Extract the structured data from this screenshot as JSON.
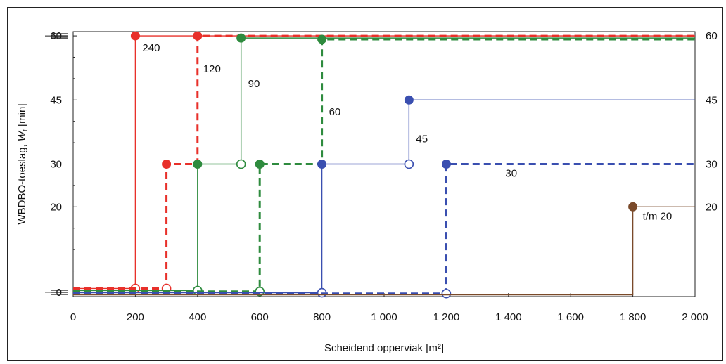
{
  "chart_data": {
    "type": "line",
    "step": true,
    "xlabel": "Scheidend opperviak [m²]",
    "ylabel_parts": [
      "WBDBO-toeslag, ",
      "W",
      "t",
      " [min]"
    ],
    "xlim": [
      0,
      2000
    ],
    "ylim": [
      -1,
      61
    ],
    "x_ticks": [
      "0",
      "200",
      "400",
      "600",
      "800",
      "1 000",
      "1 200",
      "1 400",
      "1 600",
      "1 800",
      "2 000"
    ],
    "x_tick_values": [
      0,
      200,
      400,
      600,
      800,
      1000,
      1200,
      1400,
      1600,
      1800,
      2000
    ],
    "y_ticks_left": [
      "0",
      "20",
      "30",
      "45",
      "60"
    ],
    "y_tick_values": [
      0,
      20,
      30,
      45,
      60
    ],
    "y_labels_right": [
      "20",
      "30",
      "45",
      "60"
    ],
    "grid": false,
    "series": [
      {
        "name": "240",
        "color": "#e8302a",
        "dashed": false,
        "width": 1.4,
        "points": [
          [
            0,
            0.9
          ],
          [
            200,
            0.9
          ],
          [
            200,
            60
          ],
          [
            2000,
            60
          ]
        ],
        "open_markers": [
          [
            200,
            0.9
          ]
        ],
        "filled_markers": [
          [
            200,
            60
          ]
        ],
        "label": "240",
        "label_at": [
          200,
          60
        ]
      },
      {
        "name": "120",
        "color": "#e8302a",
        "dashed": true,
        "width": 3,
        "points": [
          [
            0,
            0.9
          ],
          [
            300,
            0.9
          ],
          [
            300,
            30
          ],
          [
            400,
            30
          ],
          [
            400,
            60
          ],
          [
            2000,
            60
          ]
        ],
        "open_markers": [
          [
            300,
            0.9
          ]
        ],
        "filled_markers": [
          [
            300,
            30
          ],
          [
            400,
            60
          ]
        ],
        "label": "120",
        "label_at": [
          400,
          60
        ]
      },
      {
        "name": "90",
        "color": "#2e8b3e",
        "dashed": false,
        "width": 1.4,
        "points": [
          [
            0,
            0.4
          ],
          [
            400,
            0.4
          ],
          [
            400,
            30
          ],
          [
            540,
            30
          ],
          [
            540,
            59.5
          ],
          [
            2000,
            59.5
          ]
        ],
        "open_markers": [
          [
            400,
            0.4
          ],
          [
            540,
            30
          ]
        ],
        "filled_markers": [
          [
            400,
            30
          ],
          [
            540,
            59.5
          ]
        ],
        "label": "90",
        "label_at": [
          540,
          59.5
        ]
      },
      {
        "name": "60",
        "color": "#2e8b3e",
        "dashed": true,
        "width": 3,
        "points": [
          [
            0,
            0.2
          ],
          [
            600,
            0.2
          ],
          [
            600,
            30
          ],
          [
            800,
            30
          ],
          [
            800,
            59.2
          ],
          [
            2000,
            59.2
          ]
        ],
        "open_markers": [
          [
            600,
            0.2
          ]
        ],
        "filled_markers": [
          [
            600,
            30
          ],
          [
            800,
            59.2
          ]
        ],
        "label": "60",
        "label_at": [
          800,
          59.2
        ]
      },
      {
        "name": "45",
        "color": "#3a4fb0",
        "dashed": false,
        "width": 1.4,
        "points": [
          [
            0,
            -0.1
          ],
          [
            800,
            -0.1
          ],
          [
            800,
            30
          ],
          [
            1080,
            30
          ],
          [
            1080,
            45
          ],
          [
            2000,
            45
          ]
        ],
        "open_markers": [
          [
            800,
            -0.1
          ],
          [
            1080,
            30
          ]
        ],
        "filled_markers": [
          [
            800,
            30
          ],
          [
            1080,
            45
          ]
        ],
        "label": "45",
        "label_at": [
          1080,
          45
        ]
      },
      {
        "name": "30",
        "color": "#3a4fb0",
        "dashed": true,
        "width": 3,
        "points": [
          [
            0,
            -0.3
          ],
          [
            1200,
            -0.3
          ],
          [
            1200,
            30
          ],
          [
            2000,
            30
          ]
        ],
        "open_markers": [
          [
            1200,
            -0.3
          ]
        ],
        "filled_markers": [
          [
            1200,
            30
          ]
        ],
        "label": "30",
        "label_at": [
          1200,
          30
        ]
      },
      {
        "name": "t/m 20",
        "color": "#7a4a2a",
        "dashed": false,
        "width": 1.4,
        "points": [
          [
            0,
            -0.6
          ],
          [
            1800,
            -0.6
          ],
          [
            1800,
            20
          ],
          [
            2000,
            20
          ]
        ],
        "open_markers": [],
        "filled_markers": [
          [
            1800,
            20
          ]
        ],
        "label": "t/m 20",
        "label_at": [
          1800,
          20
        ]
      }
    ]
  }
}
